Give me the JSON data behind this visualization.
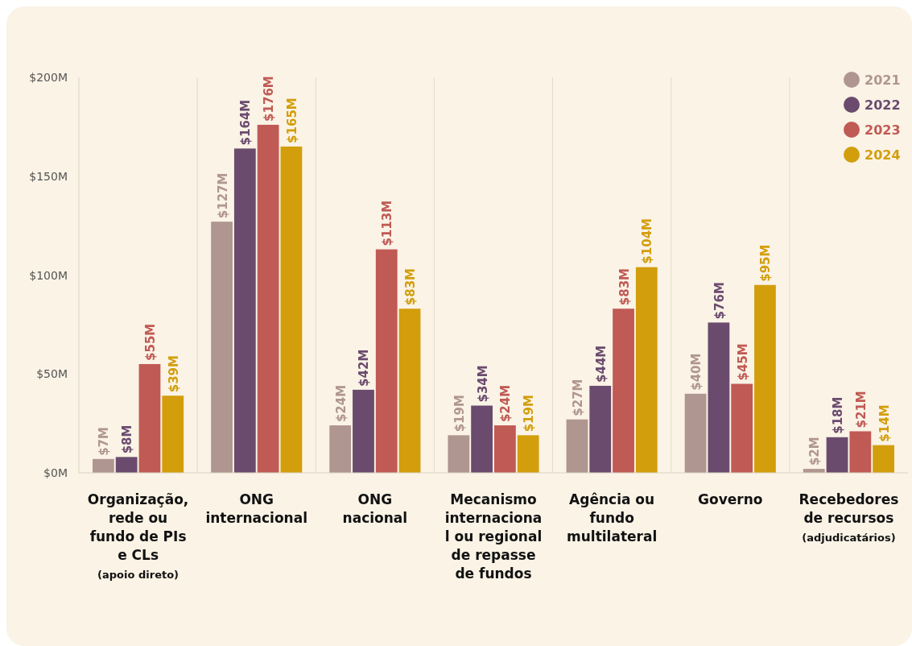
{
  "chart_data": {
    "type": "bar",
    "categories": [
      "Organização,\nrede ou\nfundo de PIs\ne CLs\n(apoio direto)",
      "ONG\ninternacional",
      "ONG\nnacional",
      "Mecanismo\ninternaciona\nl ou regional\nde repasse\nde fundos",
      "Agência ou\nfundo\nmultilateral",
      "Governo",
      "Recebedores\nde recursos\n(adjudicatários)"
    ],
    "series": [
      {
        "name": "2021",
        "color": "#b09690",
        "values": [
          7,
          127,
          24,
          19,
          27,
          40,
          2
        ],
        "value_labels": [
          "$7M",
          "$127M",
          "$24M",
          "$19M",
          "$27M",
          "$40M",
          "$2M"
        ]
      },
      {
        "name": "2022",
        "color": "#6a4b6e",
        "values": [
          8,
          164,
          42,
          34,
          44,
          76,
          18
        ],
        "value_labels": [
          "$8M",
          "$164M",
          "$42M",
          "$34M",
          "$44M",
          "$76M",
          "$18M"
        ]
      },
      {
        "name": "2023",
        "color": "#c05a54",
        "values": [
          55,
          176,
          113,
          24,
          83,
          45,
          21
        ],
        "value_labels": [
          "$55M",
          "$176M",
          "$113M",
          "$24M",
          "$83M",
          "$45M",
          "$21M"
        ]
      },
      {
        "name": "2024",
        "color": "#d39e0c",
        "values": [
          39,
          165,
          83,
          19,
          104,
          95,
          14
        ],
        "value_labels": [
          "$39M",
          "$165M",
          "$83M",
          "$19M",
          "$104M",
          "$95M",
          "$14M"
        ]
      }
    ],
    "ylim": [
      0,
      200
    ],
    "yticks": [
      {
        "value": 0,
        "label": "$0M"
      },
      {
        "value": 50,
        "label": "$50M"
      },
      {
        "value": 100,
        "label": "$100M"
      },
      {
        "value": 150,
        "label": "$150M"
      },
      {
        "value": 200,
        "label": "$200M"
      }
    ],
    "grid": false,
    "legend": "top right"
  }
}
